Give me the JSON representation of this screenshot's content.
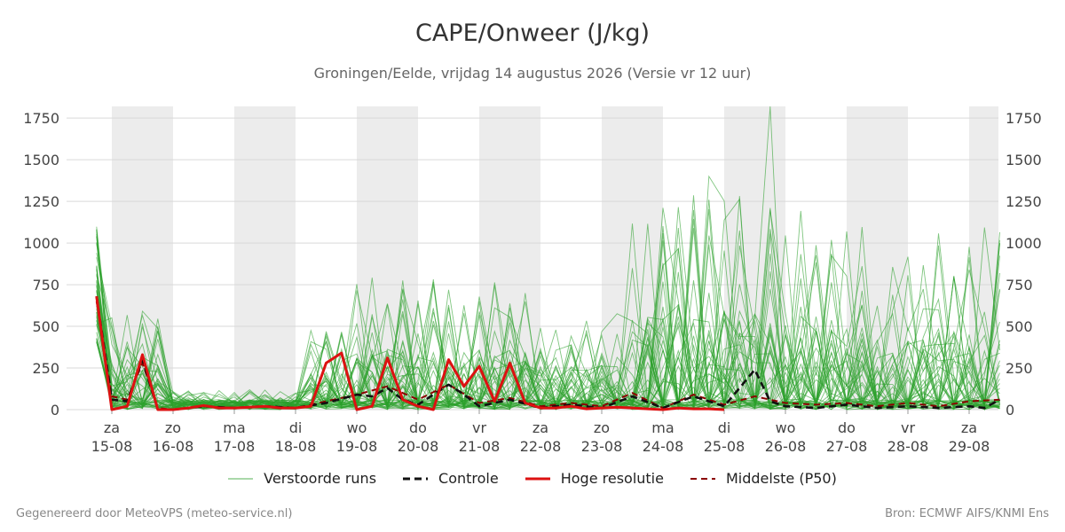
{
  "title": "CAPE/Onweer (J/kg)",
  "subtitle": "Groningen/Eelde, vrijdag 14 augustus 2026 (Versie vr 12 uur)",
  "footer_left": "Gegenereerd door MeteoVPS (meteo-service.nl)",
  "footer_right": "Bron: ECMWF AIFS/KNMI Ens",
  "chart_data": {
    "type": "line",
    "y_unit": "J/kg",
    "ylim": [
      0,
      1820
    ],
    "x_range_days": [
      "14-08",
      "29-08"
    ],
    "yticks": [
      0,
      250,
      500,
      750,
      1000,
      1250,
      1500,
      1750
    ],
    "day_labels": [
      {
        "day": "za",
        "date": "15-08"
      },
      {
        "day": "zo",
        "date": "16-08"
      },
      {
        "day": "ma",
        "date": "17-08"
      },
      {
        "day": "di",
        "date": "18-08"
      },
      {
        "day": "wo",
        "date": "19-08"
      },
      {
        "day": "do",
        "date": "20-08"
      },
      {
        "day": "vr",
        "date": "21-08"
      },
      {
        "day": "za",
        "date": "22-08"
      },
      {
        "day": "zo",
        "date": "23-08"
      },
      {
        "day": "ma",
        "date": "24-08"
      },
      {
        "day": "di",
        "date": "25-08"
      },
      {
        "day": "wo",
        "date": "26-08"
      },
      {
        "day": "do",
        "date": "27-08"
      },
      {
        "day": "vr",
        "date": "28-08"
      },
      {
        "day": "za",
        "date": "29-08"
      }
    ],
    "grid": true,
    "weekend_shading": true,
    "legend_position": "bottom",
    "colors": {
      "ensemble": "#2ca02c",
      "control": "#111111",
      "high_res": "#dd1111",
      "median": "#8b0000",
      "shade": "#ececec",
      "grid": "#d9d9d9"
    },
    "series": [
      {
        "name": "Hoge resolutie",
        "x": [
          -0.25,
          0,
          0.25,
          0.5,
          0.75,
          1,
          1.25,
          1.5,
          1.75,
          2,
          2.25,
          2.5,
          2.75,
          3,
          3.25,
          3.5,
          3.75,
          4,
          4.25,
          4.5,
          4.75,
          5,
          5.25,
          5.5,
          5.75,
          6,
          6.25,
          6.5,
          6.75,
          7,
          7.25,
          7.5,
          7.75,
          8,
          8.25,
          8.5,
          8.75,
          9,
          9.25,
          9.5,
          9.75,
          10
        ],
        "values": [
          680,
          0,
          20,
          330,
          0,
          0,
          10,
          25,
          10,
          10,
          15,
          20,
          10,
          10,
          20,
          280,
          340,
          0,
          20,
          310,
          60,
          20,
          0,
          300,
          140,
          260,
          50,
          280,
          40,
          10,
          10,
          20,
          5,
          10,
          15,
          10,
          5,
          0,
          10,
          5,
          5,
          0
        ]
      },
      {
        "name": "Controle",
        "x": [
          -0.25,
          0,
          0.25,
          0.5,
          0.75,
          1,
          1.5,
          2,
          2.5,
          3,
          3.5,
          4,
          4.25,
          4.5,
          4.75,
          5,
          5.5,
          5.75,
          6,
          6.5,
          7,
          7.5,
          8,
          8.5,
          9,
          9.5,
          10,
          10.25,
          10.5,
          10.75,
          11,
          11.5,
          12,
          12.5,
          13,
          13.5,
          14,
          14.25,
          14.5
        ],
        "values": [
          680,
          60,
          50,
          300,
          0,
          0,
          20,
          10,
          20,
          10,
          40,
          90,
          80,
          130,
          60,
          30,
          150,
          90,
          20,
          60,
          10,
          30,
          10,
          80,
          10,
          80,
          20,
          130,
          240,
          50,
          20,
          10,
          30,
          10,
          20,
          10,
          20,
          10,
          60
        ]
      },
      {
        "name": "Middelste (P50)",
        "x": [
          -0.25,
          0,
          0.25,
          0.5,
          0.75,
          1,
          1.5,
          2,
          2.5,
          3,
          3.5,
          4,
          4.5,
          5,
          5.5,
          6,
          6.5,
          7,
          7.5,
          8,
          8.5,
          9,
          9.5,
          10,
          10.5,
          11,
          11.5,
          12,
          12.5,
          13,
          13.5,
          14,
          14.5
        ],
        "values": [
          650,
          80,
          60,
          280,
          10,
          0,
          20,
          10,
          20,
          10,
          50,
          90,
          140,
          60,
          150,
          40,
          70,
          20,
          40,
          20,
          100,
          10,
          90,
          30,
          80,
          40,
          30,
          40,
          20,
          40,
          20,
          50,
          60
        ]
      }
    ]
  },
  "legend": [
    {
      "label": "Verstoorde runs",
      "kind": "ensemble"
    },
    {
      "label": "Controle",
      "kind": "control"
    },
    {
      "label": "Hoge resolutie",
      "kind": "high_res"
    },
    {
      "label": "Middelste (P50)",
      "kind": "median"
    }
  ]
}
